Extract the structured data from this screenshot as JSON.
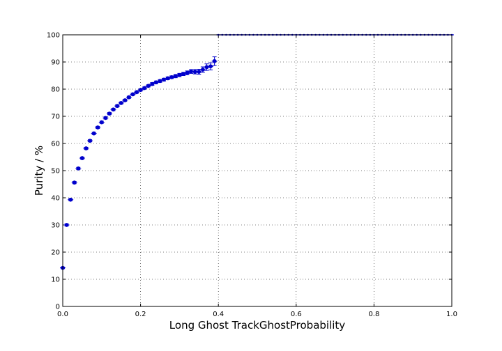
{
  "chart_data": {
    "type": "scatter",
    "title": "",
    "xlabel": "Long Ghost TrackGhostProbability",
    "ylabel": "Purity / %",
    "xlim": [
      0.0,
      1.0
    ],
    "ylim": [
      0,
      100
    ],
    "xticks": [
      "0.0",
      "0.2",
      "0.4",
      "0.6",
      "0.8",
      "1.0"
    ],
    "yticks": [
      "0",
      "10",
      "20",
      "30",
      "40",
      "50",
      "60",
      "70",
      "80",
      "90",
      "100"
    ],
    "grid": true,
    "marker_color": "#0000cc",
    "series": [
      {
        "x": [
          0.0,
          0.01,
          0.02,
          0.03,
          0.04,
          0.05,
          0.06,
          0.07,
          0.08,
          0.09,
          0.1,
          0.11,
          0.12,
          0.13,
          0.14,
          0.15,
          0.16,
          0.17,
          0.18,
          0.19,
          0.2,
          0.21,
          0.22,
          0.23,
          0.24,
          0.25,
          0.26,
          0.27,
          0.28,
          0.29,
          0.3,
          0.31,
          0.32,
          0.33,
          0.34,
          0.35,
          0.36,
          0.37,
          0.38,
          0.39
        ],
        "y": [
          14.2,
          30.0,
          39.3,
          45.6,
          50.8,
          54.6,
          58.2,
          61.0,
          63.7,
          65.9,
          67.8,
          69.4,
          71.0,
          72.5,
          73.8,
          74.9,
          75.9,
          77.0,
          78.1,
          78.9,
          79.7,
          80.4,
          81.2,
          81.9,
          82.5,
          83.0,
          83.5,
          84.0,
          84.4,
          84.8,
          85.2,
          85.6,
          86.0,
          86.5,
          86.4,
          86.4,
          87.2,
          88.1,
          88.4,
          90.3
        ],
        "yerr": [
          0.3,
          0.4,
          0.4,
          0.4,
          0.4,
          0.4,
          0.4,
          0.4,
          0.4,
          0.4,
          0.4,
          0.4,
          0.4,
          0.4,
          0.4,
          0.4,
          0.4,
          0.4,
          0.4,
          0.4,
          0.4,
          0.4,
          0.4,
          0.5,
          0.5,
          0.5,
          0.5,
          0.5,
          0.5,
          0.6,
          0.6,
          0.6,
          0.7,
          0.7,
          0.8,
          0.9,
          1.0,
          1.2,
          1.3,
          1.6
        ]
      },
      {
        "x_range": [
          0.4,
          1.0
        ],
        "step": 0.01,
        "y": 100
      }
    ]
  }
}
